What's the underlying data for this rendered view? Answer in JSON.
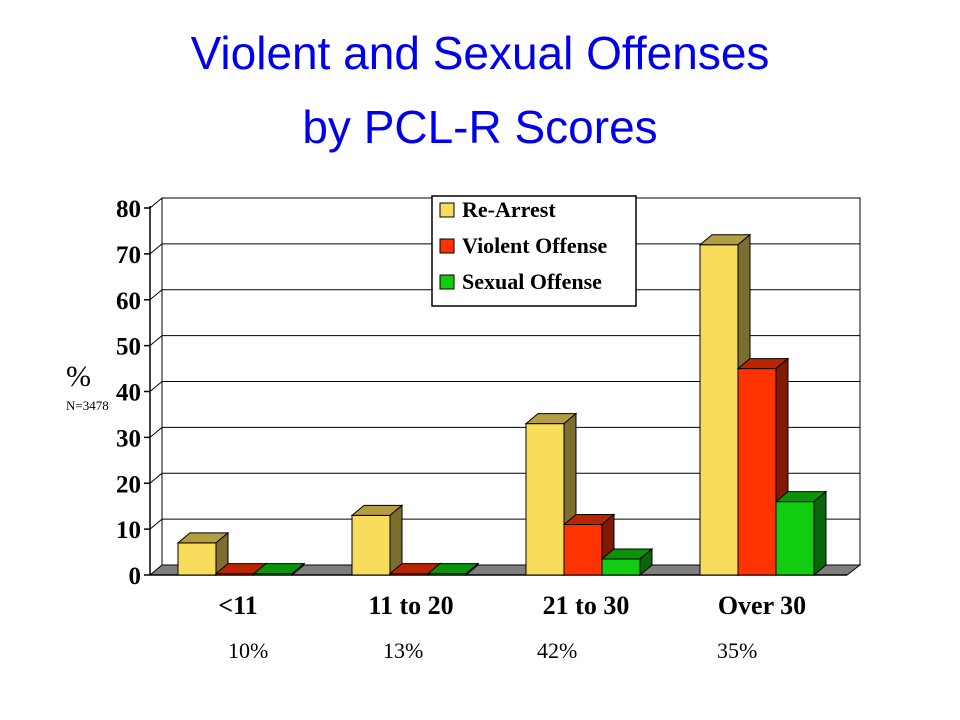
{
  "title_line1": "Violent and Sexual Offenses",
  "title_line2": "by PCL-R Scores",
  "colors": {
    "title": "#0000ee",
    "rearrest": "#f8dc5c",
    "violent": "#ff3300",
    "sexual": "#11cc11"
  },
  "chart_data": {
    "type": "bar",
    "ylabel": "%",
    "ylabel_note": "N=3478",
    "categories": [
      "<11",
      "11 to 20",
      "21 to 30",
      "Over 30"
    ],
    "category_shares": [
      "10%",
      "13%",
      "42%",
      "35%"
    ],
    "series": [
      {
        "name": "Re-Arrest",
        "values": [
          7,
          13,
          33,
          72
        ]
      },
      {
        "name": "Violent Offense",
        "values": [
          0.3,
          0.3,
          11,
          45
        ]
      },
      {
        "name": "Sexual Offense",
        "values": [
          0.3,
          0.3,
          3.5,
          16
        ]
      }
    ],
    "ylim": [
      0,
      80
    ],
    "yticks": [
      0,
      10,
      20,
      30,
      40,
      50,
      60,
      70,
      80
    ],
    "grid": true,
    "legend_position": "top-center"
  }
}
